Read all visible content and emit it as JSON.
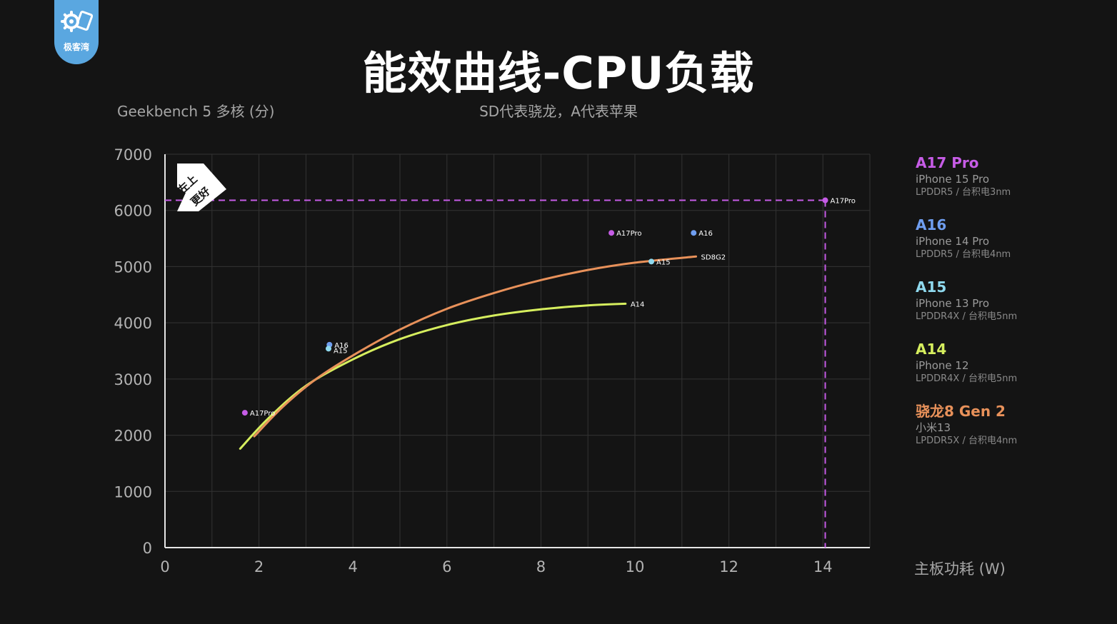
{
  "brand": {
    "logo_text": "极客湾",
    "color": "#5aa7e0"
  },
  "title": "能效曲线-CPU负载",
  "subtitle": "SD代表骁龙，A代表苹果",
  "badge": {
    "text_line1": "左上",
    "text_line2": "更好"
  },
  "legend": [
    {
      "name": "A17 Pro",
      "phone": "iPhone 15 Pro",
      "memory": "LPDDR5 / 台积电3nm",
      "color": "#c65ce6"
    },
    {
      "name": "A16",
      "phone": "iPhone 14 Pro",
      "memory": "LPDDR5 / 台积电4nm",
      "color": "#6f9ef0"
    },
    {
      "name": "A15",
      "phone": "iPhone 13 Pro",
      "memory": "LPDDR4X / 台积电5nm",
      "color": "#8fd9ee"
    },
    {
      "name": "A14",
      "phone": "iPhone 12",
      "memory": "LPDDR4X / 台积电5nm",
      "color": "#d6ee5e"
    },
    {
      "name": "骁龙8 Gen 2",
      "phone": "小米13",
      "memory": "LPDDR5X / 台积电4nm",
      "color": "#e8915a"
    }
  ],
  "chart_data": {
    "type": "line",
    "xlabel": "主板功耗 (W)",
    "ylabel": "Geekbench 5 多核 (分)",
    "xlim": [
      0,
      15
    ],
    "ylim": [
      0,
      7000
    ],
    "xticks": [
      0,
      2,
      4,
      6,
      8,
      10,
      12,
      14
    ],
    "yticks": [
      0,
      1000,
      2000,
      3000,
      4000,
      5000,
      6000,
      7000
    ],
    "grid": true,
    "series": [
      {
        "name": "A14",
        "color": "#d6ee5e",
        "label": "A14",
        "x": [
          1.6,
          2.2,
          3.0,
          4.0,
          5.0,
          6.0,
          7.0,
          8.0,
          9.0,
          9.8
        ],
        "y": [
          1760,
          2300,
          2880,
          3350,
          3710,
          3960,
          4130,
          4240,
          4310,
          4340
        ]
      },
      {
        "name": "骁龙8 Gen 2",
        "color": "#e8915a",
        "label": "SD8G2",
        "x": [
          1.9,
          2.5,
          3.2,
          4.0,
          5.0,
          6.0,
          7.0,
          8.0,
          9.0,
          10.0,
          11.3
        ],
        "y": [
          1980,
          2500,
          2990,
          3420,
          3880,
          4250,
          4530,
          4760,
          4940,
          5070,
          5180
        ]
      }
    ],
    "points": [
      {
        "label": "A17Pro",
        "x": 1.7,
        "y": 2400,
        "color": "#c65ce6"
      },
      {
        "label": "A16",
        "x": 3.5,
        "y": 3610,
        "color": "#6f9ef0"
      },
      {
        "label": "A15",
        "x": 3.48,
        "y": 3540,
        "color": "#8fd9ee"
      },
      {
        "label": "A17Pro",
        "x": 9.5,
        "y": 5600,
        "color": "#c65ce6"
      },
      {
        "label": "A16",
        "x": 11.25,
        "y": 5600,
        "color": "#6f9ef0"
      },
      {
        "label": "A15",
        "x": 10.35,
        "y": 5090,
        "color": "#8fd9ee"
      },
      {
        "label": "A17Pro",
        "x": 14.05,
        "y": 6180,
        "color": "#c65ce6"
      }
    ],
    "reference_lines": {
      "color": "#c65ce6",
      "x": 14.05,
      "y": 6180
    }
  }
}
